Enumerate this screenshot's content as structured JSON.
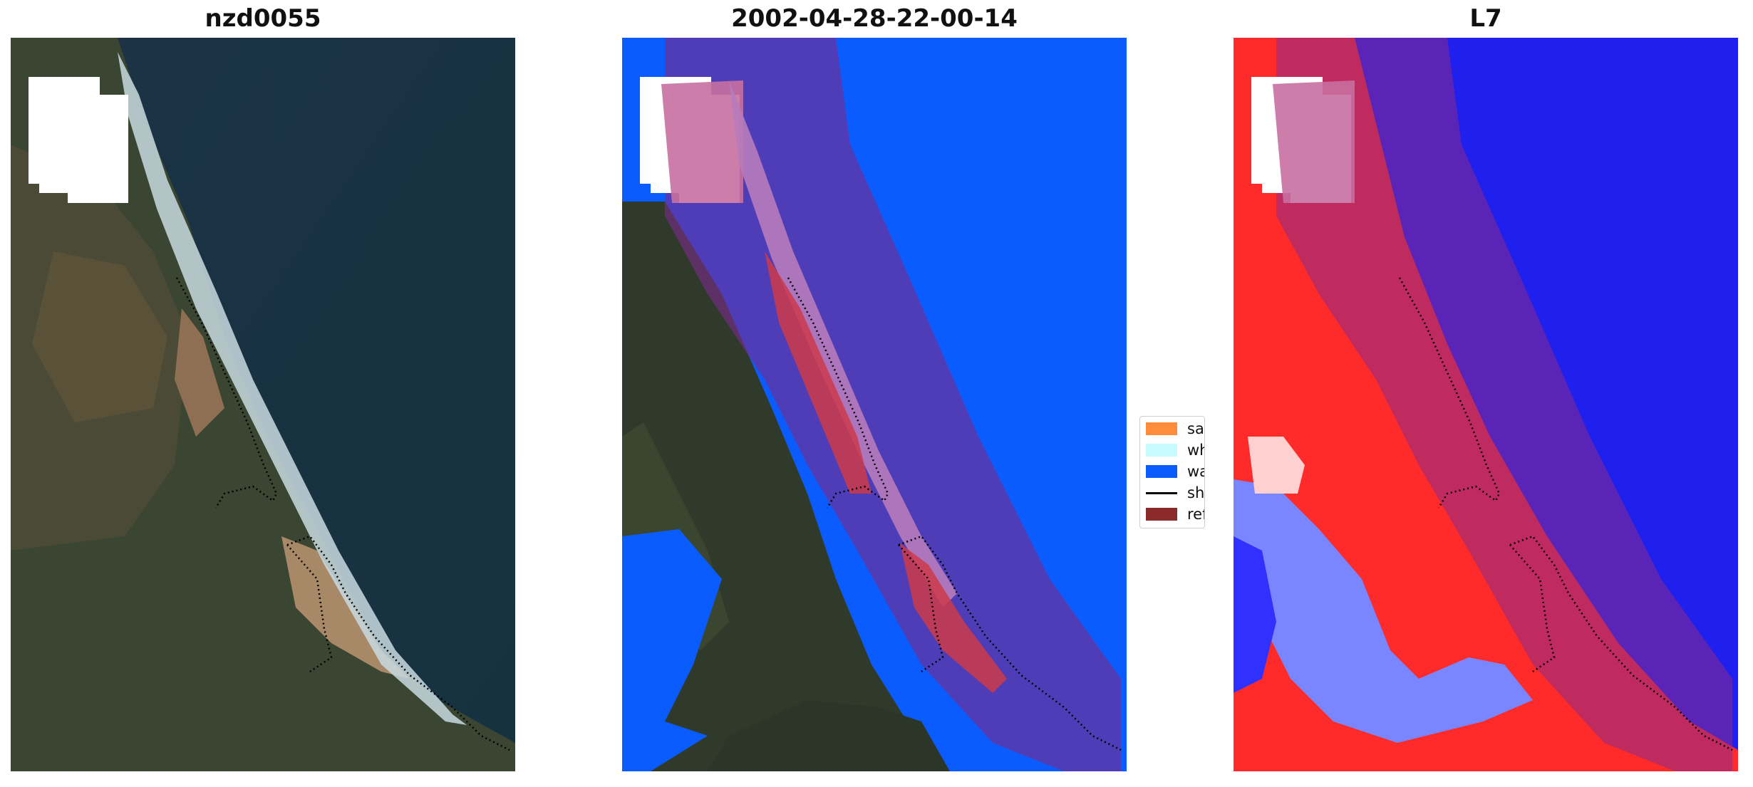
{
  "figure": {
    "panels": [
      {
        "title": "nzd0055"
      },
      {
        "title": "2002-04-28-22-00-14"
      },
      {
        "title": "L7"
      }
    ],
    "legend": {
      "items": [
        {
          "label": "sand",
          "color": "#ff8c3a",
          "kind": "patch"
        },
        {
          "label": "whitewater",
          "color": "#c8fbff",
          "kind": "patch"
        },
        {
          "label": "water",
          "color": "#0a5cff",
          "kind": "patch"
        },
        {
          "label": "shoreline",
          "color": "#000000",
          "kind": "line"
        },
        {
          "label": "reference shoreline buffer",
          "color": "#8b2a2a",
          "kind": "patch"
        }
      ]
    },
    "colors": {
      "water_class": "#0a5cff",
      "buffer_overlay": "#9a2a4c",
      "index_positive": "#ff2a2a",
      "index_negative": "#1a1aff"
    }
  }
}
